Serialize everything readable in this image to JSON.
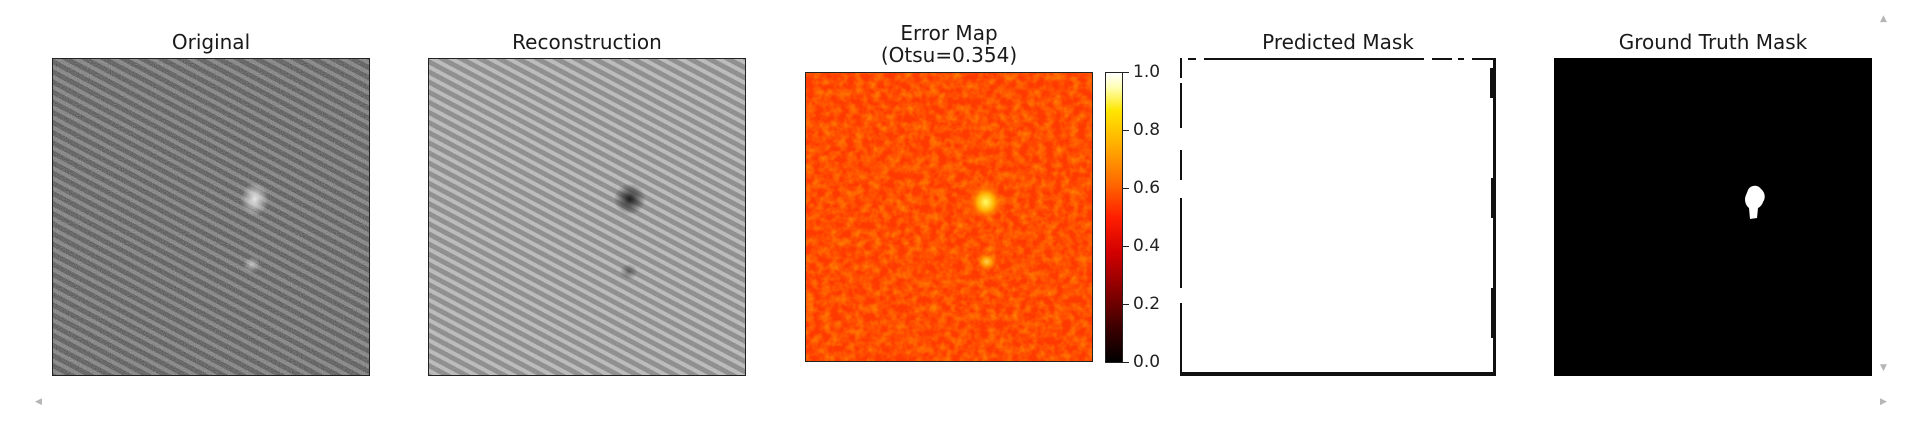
{
  "panels": [
    {
      "title": "Original"
    },
    {
      "title": "Reconstruction"
    },
    {
      "title_line1": "Error Map",
      "title_line2": "(Otsu=0.354)"
    },
    {
      "title": "Predicted Mask"
    },
    {
      "title": "Ground Truth Mask"
    }
  ],
  "colorbar": {
    "colormap": "hot",
    "ticks": [
      "0.0",
      "0.2",
      "0.4",
      "0.6",
      "0.8",
      "1.0"
    ]
  },
  "colors": {
    "error_background": "#ff3a00",
    "predicted_mask": "#ffffff",
    "ground_truth_background": "#000000"
  }
}
